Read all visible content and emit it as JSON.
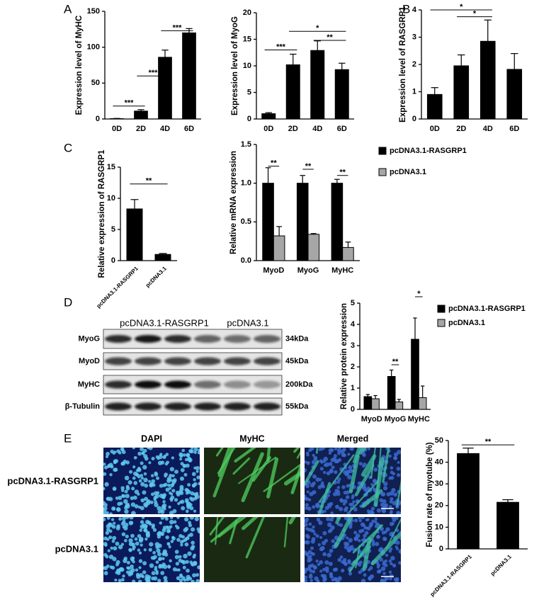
{
  "panel_labels": [
    "A",
    "B",
    "C",
    "D",
    "E"
  ],
  "chart_data": [
    {
      "type": "bar",
      "ylabel": "Expression level of MyHC",
      "categories": [
        "0D",
        "2D",
        "4D",
        "6D"
      ],
      "series": [
        {
          "color": "#000000",
          "values": [
            0.5,
            11,
            86,
            120
          ],
          "errors": [
            0.3,
            2,
            10,
            6
          ]
        }
      ],
      "ylim": [
        0,
        150
      ],
      "yticks": [
        0,
        50,
        100,
        150
      ],
      "annotations": [
        "***",
        "***",
        "***"
      ]
    },
    {
      "type": "bar",
      "ylabel": "Expression level of MyoG",
      "categories": [
        "0D",
        "2D",
        "4D",
        "6D"
      ],
      "series": [
        {
          "color": "#000000",
          "values": [
            1,
            10.2,
            12.9,
            9.3
          ],
          "errors": [
            0.2,
            2,
            1.8,
            1.2
          ]
        }
      ],
      "ylim": [
        0,
        20
      ],
      "yticks": [
        0,
        5,
        10,
        15,
        20
      ],
      "annotations": [
        "***",
        "*",
        "**"
      ]
    },
    {
      "type": "bar",
      "ylabel": "Expression level of RASGRP1",
      "categories": [
        "0D",
        "2D",
        "4D",
        "6D"
      ],
      "series": [
        {
          "color": "#000000",
          "values": [
            0.9,
            1.95,
            2.85,
            1.82
          ],
          "errors": [
            0.25,
            0.4,
            0.78,
            0.58
          ]
        }
      ],
      "ylim": [
        0,
        4
      ],
      "yticks": [
        0,
        1,
        2,
        3,
        4
      ],
      "annotations": [
        "*",
        "*"
      ]
    },
    {
      "type": "bar",
      "ylabel": "Relative expression of RASGRP1",
      "categories": [
        "pcDNA3.1-RASGRP1",
        "pcDNA3.1"
      ],
      "series": [
        {
          "color": "#000000",
          "values": [
            8.3,
            1.0
          ],
          "errors": [
            1.5,
            0.15
          ]
        }
      ],
      "ylim": [
        0,
        15
      ],
      "yticks": [
        0,
        5,
        10,
        15
      ],
      "annotations": [
        "**"
      ]
    },
    {
      "type": "bar",
      "ylabel": "Relative mRNA expression",
      "categories": [
        "MyoD",
        "MyoG",
        "MyHC"
      ],
      "series": [
        {
          "name": "pcDNA3.1-RASGRP1",
          "color": "#000000",
          "values": [
            1.0,
            1.0,
            1.0
          ],
          "errors": [
            0.2,
            0.1,
            0.05
          ]
        },
        {
          "name": "pcDNA3.1",
          "color": "#a6a6a6",
          "values": [
            0.32,
            0.34,
            0.17
          ],
          "errors": [
            0.12,
            0.01,
            0.07
          ]
        }
      ],
      "ylim": [
        0,
        1.5
      ],
      "yticks": [
        {
          "value": 0,
          "label": "0.0"
        },
        0.5,
        {
          "value": 1,
          "label": "1.0"
        },
        1.5
      ],
      "annotations": [
        "**",
        "**",
        "**"
      ]
    },
    {
      "type": "bar",
      "ylabel": "Relative protein expression",
      "categories": [
        "MyoD",
        "MyoG",
        "MyHC"
      ],
      "series": [
        {
          "name": "pcDNA3.1-RASGRP1",
          "color": "#000000",
          "values": [
            0.6,
            1.55,
            3.3
          ],
          "errors": [
            0.1,
            0.3,
            1.0
          ]
        },
        {
          "name": "pcDNA3.1",
          "color": "#a6a6a6",
          "values": [
            0.5,
            0.35,
            0.55
          ],
          "errors": [
            0.15,
            0.12,
            0.55
          ]
        }
      ],
      "ylim": [
        0,
        5
      ],
      "yticks": [
        0,
        1,
        2,
        3,
        4,
        5
      ],
      "annotations": [
        "**",
        "*"
      ]
    },
    {
      "type": "bar",
      "ylabel": "Fusion rate of myotube (%)",
      "categories": [
        "pcDNA3.1-RASGRP1",
        "pcDNA3.1"
      ],
      "series": [
        {
          "color": "#000000",
          "values": [
            44,
            21.5
          ],
          "errors": [
            2.5,
            1.2
          ]
        }
      ],
      "ylim": [
        0,
        50
      ],
      "yticks": [
        0,
        10,
        20,
        30,
        40,
        50
      ],
      "annotations": [
        "**"
      ]
    }
  ],
  "western_blot": {
    "groups": [
      "pcDNA3.1-RASGRP1",
      "pcDNA3.1"
    ],
    "rows": [
      {
        "protein": "MyoG",
        "size": "34kDa"
      },
      {
        "protein": "MyoD",
        "size": "45kDa"
      },
      {
        "protein": "MyHC",
        "size": "200kDa"
      },
      {
        "protein": "β-Tubulin",
        "size": "55kDa"
      }
    ]
  },
  "microscopy": {
    "columns": [
      "DAPI",
      "MyHC",
      "Merged"
    ],
    "rows": [
      "pcDNA3.1-RASGRP1",
      "pcDNA3.1"
    ]
  }
}
